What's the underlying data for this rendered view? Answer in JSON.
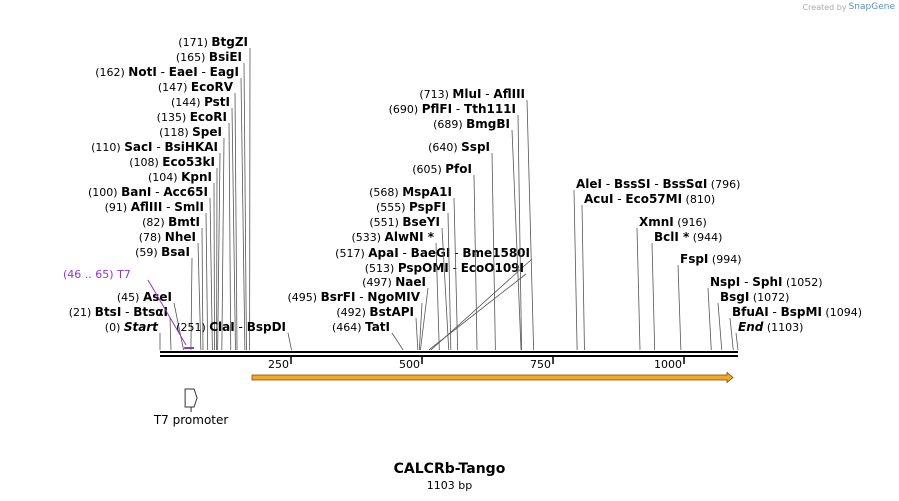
{
  "app": {
    "credit_prefix": "Created by",
    "credit_brand": "SnapGene"
  },
  "sequence": {
    "name": "CALCRb-Tango",
    "length_label": "1103 bp",
    "length": 1103
  },
  "axis_ticks": [
    {
      "pos": 250,
      "label": "250"
    },
    {
      "pos": 500,
      "label": "500"
    },
    {
      "pos": 750,
      "label": "750"
    },
    {
      "pos": 1000,
      "label": "1000"
    }
  ],
  "sites": [
    {
      "pos": 171,
      "pos_label": "(171)",
      "names": [
        "BtgZI"
      ],
      "star": false,
      "side": "left"
    },
    {
      "pos": 165,
      "pos_label": "(165)",
      "names": [
        "BsiEI"
      ],
      "star": false,
      "side": "left"
    },
    {
      "pos": 162,
      "pos_label": "(162)",
      "names": [
        "NotI",
        "EaeI",
        "EagI"
      ],
      "star": false,
      "side": "left"
    },
    {
      "pos": 147,
      "pos_label": "(147)",
      "names": [
        "EcoRV"
      ],
      "star": false,
      "side": "left"
    },
    {
      "pos": 144,
      "pos_label": "(144)",
      "names": [
        "PstI"
      ],
      "star": false,
      "side": "left"
    },
    {
      "pos": 135,
      "pos_label": "(135)",
      "names": [
        "EcoRI"
      ],
      "star": false,
      "side": "left"
    },
    {
      "pos": 118,
      "pos_label": "(118)",
      "names": [
        "SpeI"
      ],
      "star": false,
      "side": "left"
    },
    {
      "pos": 110,
      "pos_label": "(110)",
      "names": [
        "SacI",
        "BsiHKAI"
      ],
      "star": false,
      "side": "left"
    },
    {
      "pos": 108,
      "pos_label": "(108)",
      "names": [
        "Eco53kI"
      ],
      "star": false,
      "side": "left"
    },
    {
      "pos": 104,
      "pos_label": "(104)",
      "names": [
        "KpnI"
      ],
      "star": false,
      "side": "left"
    },
    {
      "pos": 100,
      "pos_label": "(100)",
      "names": [
        "BanI",
        "Acc65I"
      ],
      "star": false,
      "side": "left"
    },
    {
      "pos": 91,
      "pos_label": "(91)",
      "names": [
        "AflIII",
        "SmlI"
      ],
      "star": false,
      "side": "left"
    },
    {
      "pos": 82,
      "pos_label": "(82)",
      "names": [
        "BmtI"
      ],
      "star": false,
      "side": "left"
    },
    {
      "pos": 78,
      "pos_label": "(78)",
      "names": [
        "NheI"
      ],
      "star": false,
      "side": "left"
    },
    {
      "pos": 59,
      "pos_label": "(59)",
      "names": [
        "BsaI"
      ],
      "star": false,
      "side": "left"
    },
    {
      "pos": 45,
      "pos_label": "(45)",
      "names": [
        "AseI"
      ],
      "star": false,
      "side": "left"
    },
    {
      "pos": 21,
      "pos_label": "(21)",
      "names": [
        "BtsI",
        "BtsαI"
      ],
      "star": false,
      "side": "left"
    },
    {
      "pos": 0,
      "pos_label": "(0)",
      "names": [
        "Start"
      ],
      "star": false,
      "side": "left",
      "italic": true
    },
    {
      "pos": 251,
      "pos_label": "(251)",
      "names": [
        "ClaI",
        "BspDI"
      ],
      "star": false,
      "side": "left"
    },
    {
      "pos": 517,
      "pos_label": "(517)",
      "names": [
        "ApaI",
        "BaeGI",
        "Bme1580I"
      ],
      "star": false,
      "side": "left"
    },
    {
      "pos": 513,
      "pos_label": "(513)",
      "names": [
        "PspOMI",
        "EcoO109I"
      ],
      "star": false,
      "side": "left"
    },
    {
      "pos": 713,
      "pos_label": "(713)",
      "names": [
        "MluI",
        "AflIII"
      ],
      "star": false,
      "side": "left"
    },
    {
      "pos": 690,
      "pos_label": "(690)",
      "names": [
        "PflFI",
        "Tth111I"
      ],
      "star": false,
      "side": "left"
    },
    {
      "pos": 689,
      "pos_label": "(689)",
      "names": [
        "BmgBI"
      ],
      "star": false,
      "side": "left"
    },
    {
      "pos": 640,
      "pos_label": "(640)",
      "names": [
        "SspI"
      ],
      "star": false,
      "side": "left"
    },
    {
      "pos": 605,
      "pos_label": "(605)",
      "names": [
        "PfoI"
      ],
      "star": false,
      "side": "left"
    },
    {
      "pos": 568,
      "pos_label": "(568)",
      "names": [
        "MspA1I"
      ],
      "star": false,
      "side": "left"
    },
    {
      "pos": 555,
      "pos_label": "(555)",
      "names": [
        "PspFI"
      ],
      "star": false,
      "side": "left"
    },
    {
      "pos": 551,
      "pos_label": "(551)",
      "names": [
        "BseYI"
      ],
      "star": false,
      "side": "left"
    },
    {
      "pos": 533,
      "pos_label": "(533)",
      "names": [
        "AlwNI"
      ],
      "star": true,
      "side": "left"
    },
    {
      "pos": 497,
      "pos_label": "(497)",
      "names": [
        "NaeI"
      ],
      "star": false,
      "side": "left"
    },
    {
      "pos": 495,
      "pos_label": "(495)",
      "names": [
        "BsrFI",
        "NgoMIV"
      ],
      "star": false,
      "side": "left"
    },
    {
      "pos": 492,
      "pos_label": "(492)",
      "names": [
        "BstAPI"
      ],
      "star": false,
      "side": "left"
    },
    {
      "pos": 464,
      "pos_label": "(464)",
      "names": [
        "TatI"
      ],
      "star": false,
      "side": "left"
    },
    {
      "pos": 796,
      "pos_label": "(796)",
      "names": [
        "AleI",
        "BssSI",
        "BssSαI"
      ],
      "star": false,
      "side": "right"
    },
    {
      "pos": 810,
      "pos_label": "(810)",
      "names": [
        "AcuI",
        "Eco57MI"
      ],
      "star": false,
      "side": "right"
    },
    {
      "pos": 916,
      "pos_label": "(916)",
      "names": [
        "XmnI"
      ],
      "star": false,
      "side": "right"
    },
    {
      "pos": 944,
      "pos_label": "(944)",
      "names": [
        "BclI"
      ],
      "star": true,
      "side": "right"
    },
    {
      "pos": 994,
      "pos_label": "(994)",
      "names": [
        "FspI"
      ],
      "star": false,
      "side": "right"
    },
    {
      "pos": 1052,
      "pos_label": "(1052)",
      "names": [
        "NspI",
        "SphI"
      ],
      "star": false,
      "side": "right"
    },
    {
      "pos": 1072,
      "pos_label": "(1072)",
      "names": [
        "BsgI"
      ],
      "star": false,
      "side": "right"
    },
    {
      "pos": 1094,
      "pos_label": "(1094)",
      "names": [
        "BfuAI",
        "BspMI"
      ],
      "star": false,
      "side": "right"
    },
    {
      "pos": 1103,
      "pos_label": "(1103)",
      "names": [
        "End"
      ],
      "star": false,
      "side": "right",
      "italic": true
    }
  ],
  "primer": {
    "range_label": "(46 .. 65)",
    "name": "T7",
    "start": 46,
    "end": 65,
    "color": "#9933cc"
  },
  "features": [
    {
      "name": "T7 promoter",
      "start": 46,
      "end": 65,
      "type": "promoter",
      "color": "#ffffff"
    },
    {
      "name": "",
      "start": 175,
      "end": 1103,
      "type": "orf",
      "color": "#f5a623"
    }
  ]
}
